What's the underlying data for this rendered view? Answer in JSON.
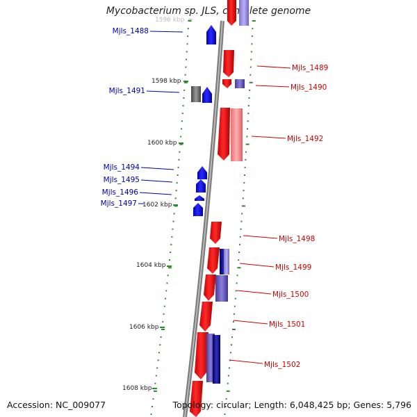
{
  "title": "Mycobacterium sp. JLS, complete genome",
  "footer": {
    "accession": "Accession: NC_009077",
    "topology": "Topology: circular; Length: 6,048,425 bp; Genes: 5,796"
  },
  "colors": {
    "forward": "#ff0000",
    "reverse": "#0000ff",
    "blue_label": "#0000aa",
    "red_label": "#cc0000",
    "tick": "#2b8a2b",
    "backbone": "#808080"
  },
  "kbp_labels": [
    {
      "text": "1596 kbp",
      "pos": 0.0
    },
    {
      "text": "1598 kbp",
      "pos": 1.0
    },
    {
      "text": "1600 kbp",
      "pos": 2.0
    },
    {
      "text": "1602 kbp",
      "pos": 3.0
    },
    {
      "text": "1604 kbp",
      "pos": 4.0
    },
    {
      "text": "1606 kbp",
      "pos": 5.0
    },
    {
      "text": "1608 kbp",
      "pos": 6.0
    }
  ],
  "left_genes": [
    "Mjls_1488",
    "Mjls_1491",
    "Mjls_1494",
    "Mjls_1495",
    "Mjls_1496",
    "Mjls_1497"
  ],
  "right_genes": [
    "Mjls_1489",
    "Mjls_1490",
    "Mjls_1492",
    "Mjls_1498",
    "Mjls_1499",
    "Mjls_1500",
    "Mjls_1501",
    "Mjls_1502"
  ]
}
